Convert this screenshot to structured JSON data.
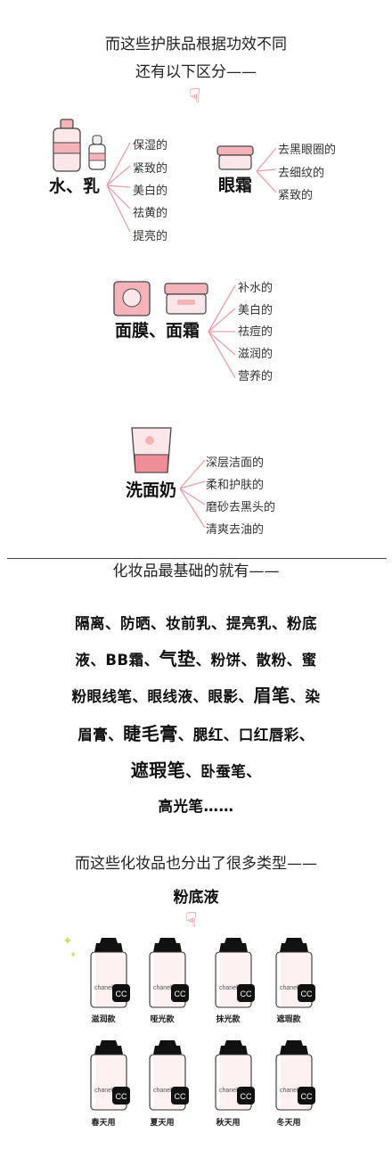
{
  "header": {
    "line1": "而这些护肤品根据功效不同",
    "line2": "还有以下区分——"
  },
  "skincare": {
    "water_milk": {
      "label": "水、乳",
      "effects": [
        "保湿的",
        "紧致的",
        "美白的",
        "祛黄的",
        "提亮的"
      ]
    },
    "eye_cream": {
      "label": "眼霜",
      "effects": [
        "去黑眼圈的",
        "去细纹的",
        "紧致的"
      ]
    },
    "mask_cream": {
      "label": "面膜、面霜",
      "effects": [
        "补水的",
        "美白的",
        "祛痘的",
        "滋润的",
        "营养的"
      ]
    },
    "cleanser": {
      "label": "洗面奶",
      "effects": [
        "深层洁面的",
        "柔和护肤的",
        "磨砂去黑头的",
        "清爽去油的"
      ]
    }
  },
  "makeup": {
    "heading": "化妆品最基础的就有——",
    "rows": [
      [
        "隔离、防晒、妆前乳、提亮乳、粉底"
      ],
      [
        "液、BB霜、",
        "气垫",
        "、粉饼、散粉、蜜"
      ],
      [
        "粉眼线笔、眼线液、眼影、",
        "眉笔",
        "、染"
      ],
      [
        "眉膏、",
        "睫毛膏",
        "、腮红、口红唇彩、"
      ],
      [
        "遮瑕笔",
        "、卧蚕笔、"
      ],
      [
        "高光笔……"
      ]
    ]
  },
  "types": {
    "heading": "而这些化妆品也分出了很多类型——",
    "category": "粉底液",
    "bottle_text": "chanel",
    "captions_row1": [
      "滋润款",
      "哑光款",
      "抹光款",
      "遮瑕款"
    ],
    "captions_row2": [
      "春天用",
      "夏天用",
      "秋天用",
      "冬天用"
    ]
  },
  "colors": {
    "accent_pink": "#f0a4ab",
    "line_pink": "#e8a0a6"
  }
}
